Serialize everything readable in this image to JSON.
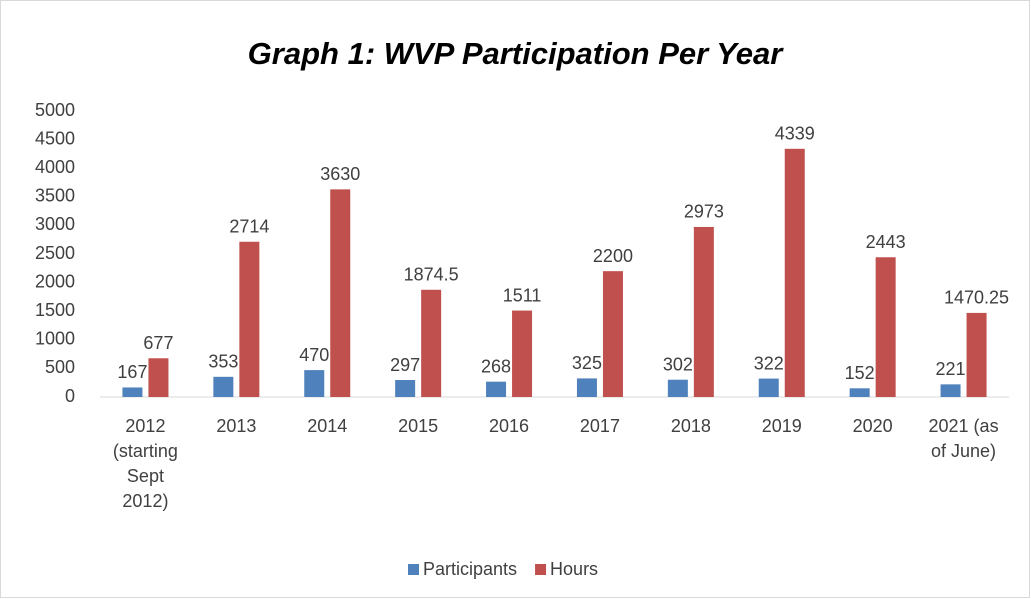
{
  "chart_data": {
    "type": "bar",
    "title": "Graph 1: WVP Participation Per Year",
    "categories": [
      "2012 (starting Sept 2012)",
      "2013",
      "2014",
      "2015",
      "2016",
      "2017",
      "2018",
      "2019",
      "2020",
      "2021 (as of June)"
    ],
    "series": [
      {
        "name": "Participants",
        "color": "#4f81bd",
        "values": [
          167,
          353,
          470,
          297,
          268,
          325,
          302,
          322,
          152,
          221
        ]
      },
      {
        "name": "Hours",
        "color": "#c0504d",
        "values": [
          677,
          2714,
          3630,
          1874.5,
          1511,
          2200,
          2973,
          4339,
          2443,
          1470.25
        ]
      }
    ],
    "ylim": [
      0,
      5000
    ],
    "yticks": [
      0,
      500,
      1000,
      1500,
      2000,
      2500,
      3000,
      3500,
      4000,
      4500,
      5000
    ],
    "grid": false,
    "legend": "bottom"
  }
}
